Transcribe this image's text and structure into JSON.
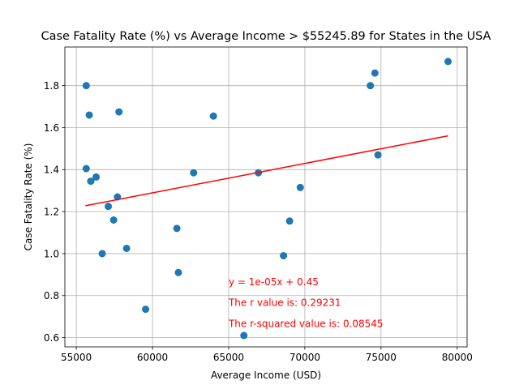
{
  "chart_data": {
    "type": "scatter",
    "title": "Case Fatality Rate (%) vs Average Income > $55245.89 for States in the USA",
    "xlabel": "Average Income (USD)",
    "ylabel": "Case Fatality Rate (%)",
    "xlim": [
      54250,
      80650
    ],
    "ylim": [
      0.556,
      1.984
    ],
    "xticks": [
      55000,
      60000,
      65000,
      70000,
      75000,
      80000
    ],
    "yticks": [
      0.6,
      0.8,
      1.0,
      1.2,
      1.4,
      1.6,
      1.8
    ],
    "grid": true,
    "marker_color": "#1f77b4",
    "points": [
      {
        "x": 55650,
        "y": 1.8
      },
      {
        "x": 55650,
        "y": 1.405
      },
      {
        "x": 55850,
        "y": 1.66
      },
      {
        "x": 55950,
        "y": 1.345
      },
      {
        "x": 56300,
        "y": 1.365
      },
      {
        "x": 56700,
        "y": 1.0
      },
      {
        "x": 57100,
        "y": 1.225
      },
      {
        "x": 57450,
        "y": 1.16
      },
      {
        "x": 57700,
        "y": 1.27
      },
      {
        "x": 57800,
        "y": 1.675
      },
      {
        "x": 58300,
        "y": 1.025
      },
      {
        "x": 59550,
        "y": 0.735
      },
      {
        "x": 61600,
        "y": 1.12
      },
      {
        "x": 61700,
        "y": 0.91
      },
      {
        "x": 62700,
        "y": 1.385
      },
      {
        "x": 64000,
        "y": 1.655
      },
      {
        "x": 66000,
        "y": 0.61
      },
      {
        "x": 66950,
        "y": 1.385
      },
      {
        "x": 68600,
        "y": 0.99
      },
      {
        "x": 69000,
        "y": 1.155
      },
      {
        "x": 69700,
        "y": 1.315
      },
      {
        "x": 74300,
        "y": 1.8
      },
      {
        "x": 74600,
        "y": 1.86
      },
      {
        "x": 74800,
        "y": 1.47
      },
      {
        "x": 79400,
        "y": 1.915
      }
    ],
    "regression": {
      "color": "#ff0000",
      "x": [
        55600,
        79400
      ],
      "y": [
        1.228,
        1.561
      ],
      "equation": "y = 1e-05x + 0.45",
      "r_value_text": "The r value is: 0.29231",
      "r_squared_text": "The r-squared value is: 0.08545"
    },
    "annotations_anchor": {
      "x": 65000,
      "ylines": [
        0.85,
        0.75,
        0.65
      ]
    }
  }
}
